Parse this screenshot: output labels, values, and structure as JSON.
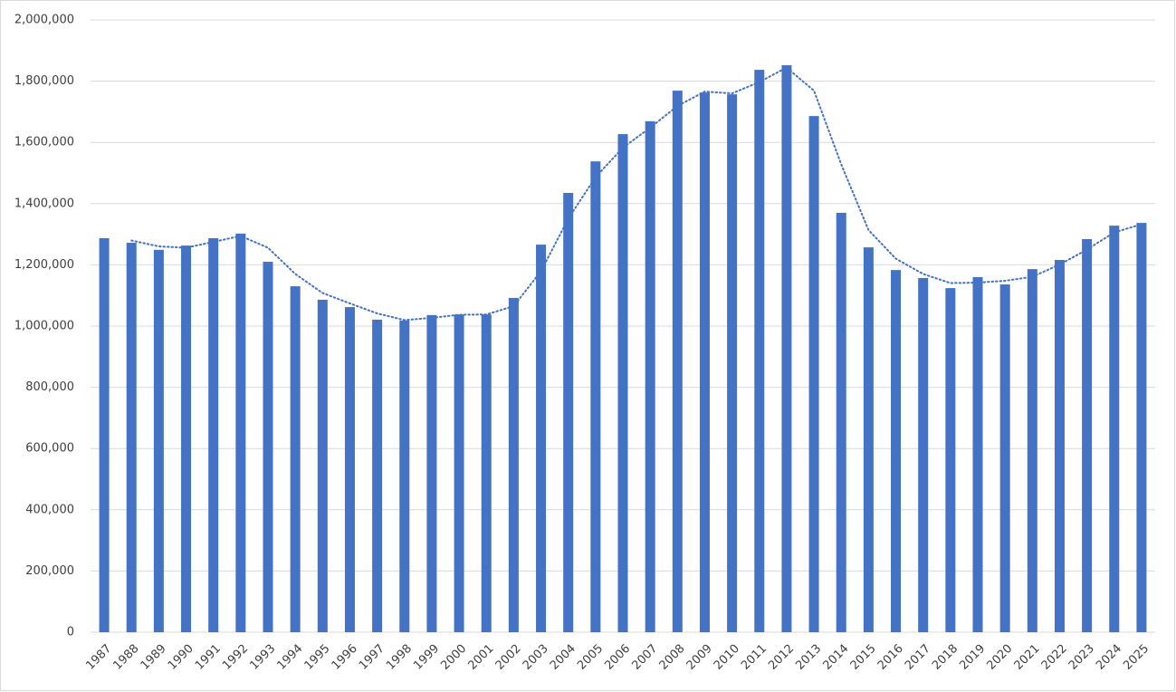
{
  "chart_data": {
    "type": "bar",
    "categories": [
      "1987",
      "1988",
      "1989",
      "1990",
      "1991",
      "1992",
      "1993",
      "1994",
      "1995",
      "1996",
      "1997",
      "1998",
      "1999",
      "2000",
      "2001",
      "2002",
      "2003",
      "2004",
      "2005",
      "2006",
      "2007",
      "2008",
      "2009",
      "2010",
      "2011",
      "2012",
      "2013",
      "2014",
      "2015",
      "2016",
      "2017",
      "2018",
      "2019",
      "2020",
      "2021",
      "2022",
      "2023",
      "2024",
      "2025"
    ],
    "series": [
      {
        "color": "#4472c4",
        "values": [
          1287000,
          1272000,
          1249000,
          1263000,
          1287000,
          1302000,
          1210000,
          1130000,
          1086000,
          1062000,
          1021000,
          1018000,
          1036000,
          1038000,
          1038000,
          1092000,
          1266000,
          1435000,
          1538000,
          1627000,
          1669000,
          1769000,
          1763000,
          1757000,
          1837000,
          1852000,
          1686000,
          1370000,
          1257000,
          1183000,
          1157000,
          1124000,
          1160000,
          1136000,
          1186000,
          1216000,
          1284000,
          1328000,
          1337000
        ]
      },
      {
        "type": "line",
        "color": "#4472c4",
        "values": [
          null,
          1279500,
          1260500,
          1256000,
          1275000,
          1294500,
          1256000,
          1170000,
          1108000,
          1074000,
          1041500,
          1019500,
          1027000,
          1037000,
          1038000,
          1065000,
          1179000,
          1350500,
          1486500,
          1582500,
          1648000,
          1719000,
          1766000,
          1760000,
          1797000,
          1844500,
          1769000,
          1528000,
          1313500,
          1220000,
          1170000,
          1140500,
          1142000,
          1148000,
          1161000,
          1201000,
          1250000,
          1306000,
          1332500
        ]
      }
    ],
    "ylim": [
      0,
      2000000
    ],
    "yticks": [
      0,
      {
        "value": 200000,
        "label": "200,000"
      },
      {
        "value": 400000,
        "label": "400,000"
      },
      {
        "value": 600000,
        "label": "600,000"
      },
      {
        "value": 800000,
        "label": "800,000"
      },
      {
        "value": 1000000,
        "label": "1,000,000"
      },
      {
        "value": 1200000,
        "label": "1,200,000"
      },
      {
        "value": 1400000,
        "label": "1,400,000"
      },
      {
        "value": 1600000,
        "label": "1,600,000"
      },
      {
        "value": 1800000,
        "label": "1,800,000"
      },
      {
        "value": 2000000,
        "label": "2,000,000"
      }
    ],
    "grid": true
  }
}
